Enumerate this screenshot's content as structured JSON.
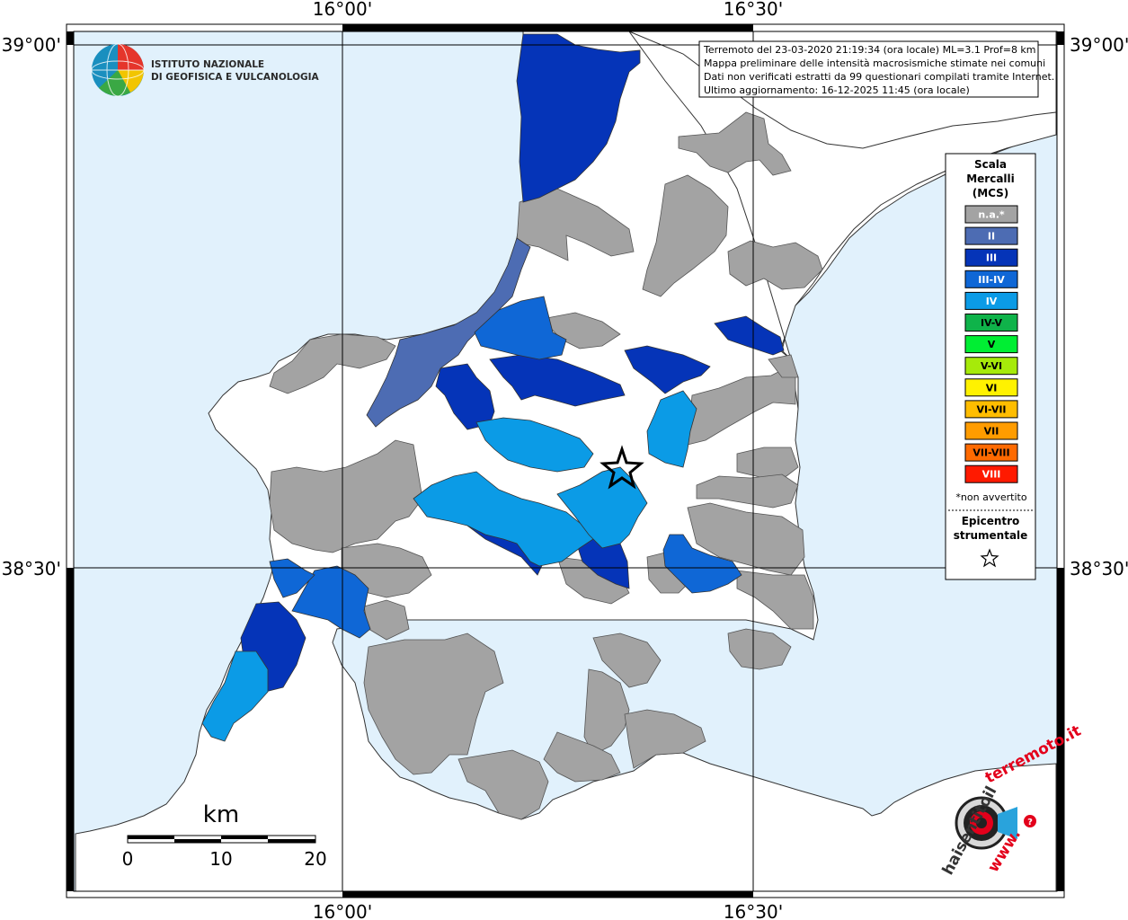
{
  "map": {
    "lon_labels": [
      "16°00'",
      "16°30'"
    ],
    "lat_labels": [
      "39°00'",
      "38°30'"
    ],
    "colors": {
      "sea": "#e1f1fc",
      "land": "#ffffff",
      "na": "#a3a3a3",
      "II": "#4d6cb3",
      "III": "#0534b8",
      "III-IV": "#0f67d6",
      "IV": "#0b9be6"
    }
  },
  "info_box": {
    "line1": "Terremoto del 23-03-2020 21:19:34 (ora locale) ML=3.1 Prof=8 km",
    "line2": "Mappa preliminare delle intensità macrosismiche stimate nei comuni",
    "line3": "Dati non verificati estratti da 99 questionari compilati tramite Internet.",
    "line4": "Ultimo aggiornamento: 16-12-2025 11:45 (ora locale)"
  },
  "institute": {
    "line1": "ISTITUTO NAZIONALE",
    "line2": "DI GEOFISICA E VULCANOLOGIA"
  },
  "legend": {
    "title1": "Scala",
    "title2": "Mercalli",
    "title3": "(MCS)",
    "items": [
      {
        "label": "n.a.*",
        "color": "#a3a3a3",
        "text": "#ffffff"
      },
      {
        "label": "II",
        "color": "#4d6cb3",
        "text": "#ffffff"
      },
      {
        "label": "III",
        "color": "#0534b8",
        "text": "#ffffff"
      },
      {
        "label": "III-IV",
        "color": "#0f67d6",
        "text": "#ffffff"
      },
      {
        "label": "IV",
        "color": "#0b9be6",
        "text": "#ffffff"
      },
      {
        "label": "IV-V",
        "color": "#0fb34a",
        "text": "#000000"
      },
      {
        "label": "V",
        "color": "#00ee33",
        "text": "#000000"
      },
      {
        "label": "V-VI",
        "color": "#a6ea0a",
        "text": "#000000"
      },
      {
        "label": "VI",
        "color": "#fff200",
        "text": "#000000"
      },
      {
        "label": "VI-VII",
        "color": "#ffbd00",
        "text": "#000000"
      },
      {
        "label": "VII",
        "color": "#ff9c00",
        "text": "#000000"
      },
      {
        "label": "VII-VIII",
        "color": "#ff6a00",
        "text": "#000000"
      },
      {
        "label": "VIII",
        "color": "#ff1a00",
        "text": "#ffffff"
      }
    ],
    "note": "*non avvertito",
    "epicenter1": "Epicentro",
    "epicenter2": "strumentale"
  },
  "scalebar": {
    "unit": "km",
    "ticks": [
      "0",
      "10",
      "20"
    ]
  },
  "hsit_logo": {
    "text1": "haisentitoil",
    "text2": "terremoto.it",
    "text3": "www."
  }
}
